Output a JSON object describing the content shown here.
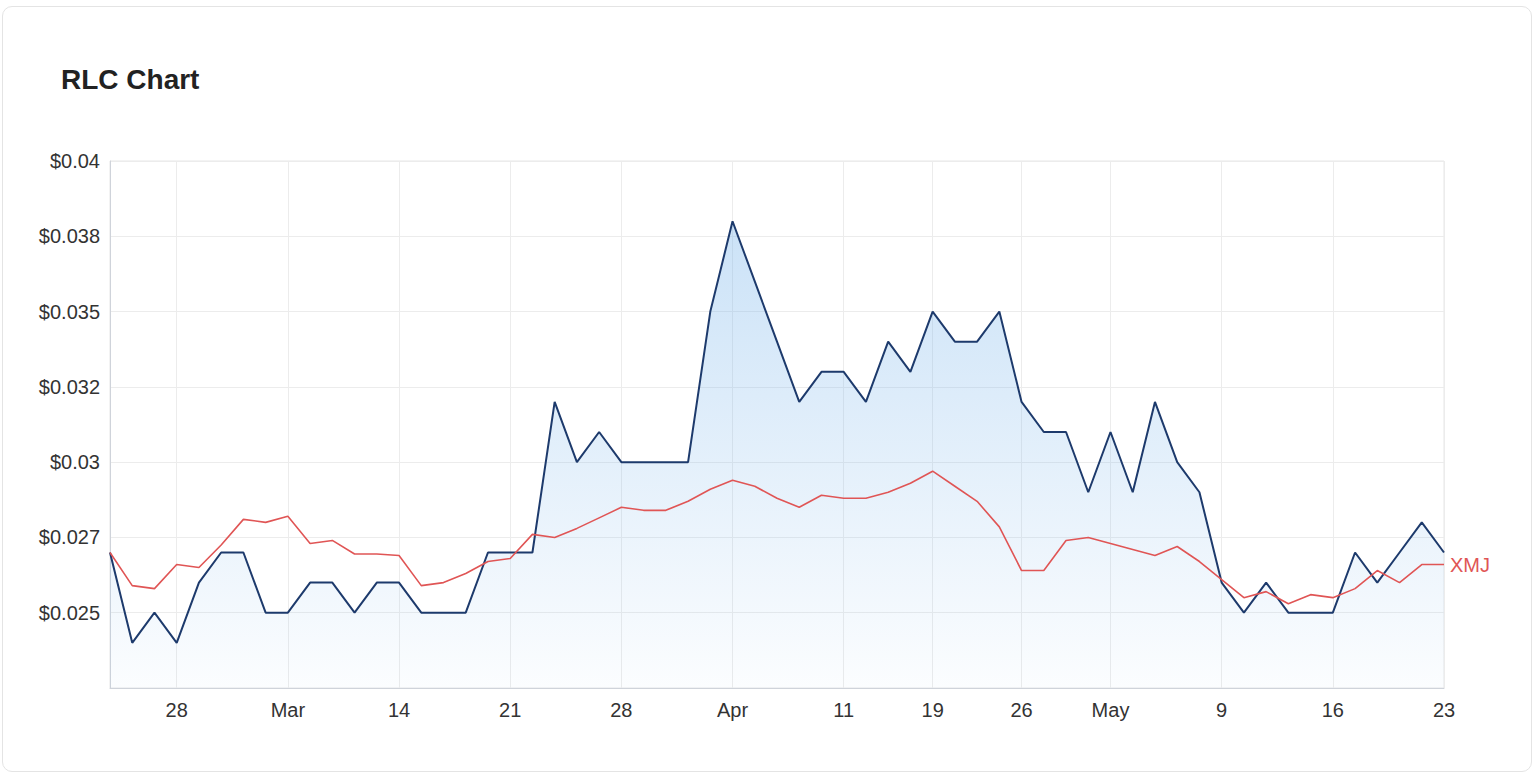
{
  "chart_data": {
    "type": "line",
    "title": "RLC Chart",
    "categories": [
      null,
      null,
      null,
      "28",
      null,
      null,
      null,
      null,
      "Mar",
      null,
      null,
      null,
      null,
      "14",
      null,
      null,
      null,
      null,
      "21",
      null,
      null,
      null,
      null,
      "28",
      null,
      null,
      null,
      null,
      "Apr",
      null,
      null,
      null,
      null,
      "11",
      null,
      null,
      null,
      "19",
      null,
      null,
      null,
      "26",
      null,
      null,
      null,
      "May",
      null,
      null,
      null,
      null,
      "9",
      null,
      null,
      null,
      null,
      "16",
      null,
      null,
      null,
      null,
      "23"
    ],
    "series": [
      {
        "type": "area",
        "color": "#1d3a6c",
        "values": [
          0.027,
          0.024,
          0.025,
          0.024,
          0.026,
          0.027,
          0.027,
          0.025,
          0.025,
          0.026,
          0.026,
          0.025,
          0.026,
          0.026,
          0.025,
          0.025,
          0.025,
          0.027,
          0.027,
          0.027,
          0.032,
          0.03,
          0.031,
          0.03,
          0.03,
          0.03,
          0.03,
          0.035,
          0.038,
          0.036,
          0.034,
          0.032,
          0.033,
          0.033,
          0.032,
          0.034,
          0.033,
          0.035,
          0.034,
          0.034,
          0.035,
          0.032,
          0.031,
          0.031,
          0.029,
          0.031,
          0.029,
          0.032,
          0.03,
          0.029,
          0.026,
          0.025,
          0.026,
          0.025,
          0.025,
          0.025,
          0.027,
          0.026,
          0.027,
          0.028,
          0.027
        ]
      },
      {
        "name": "XMJ",
        "type": "line",
        "color": "#e05555",
        "values": [
          0.027,
          0.0259,
          0.0258,
          0.0266,
          0.0265,
          0.02725,
          0.0281,
          0.028,
          0.0282,
          0.0273,
          0.0274,
          0.02695,
          0.02695,
          0.0269,
          0.0259,
          0.026,
          0.0263,
          0.0267,
          0.0268,
          0.0276,
          0.0275,
          0.0278,
          0.02815,
          0.0285,
          0.0284,
          0.0284,
          0.0287,
          0.0291,
          0.0294,
          0.0292,
          0.0288,
          0.0285,
          0.0289,
          0.0288,
          0.0288,
          0.029,
          0.0293,
          0.0297,
          0.0292,
          0.0287,
          0.02785,
          0.0264,
          0.0264,
          0.0274,
          0.0275,
          0.0273,
          0.0271,
          0.0269,
          0.0272,
          0.0267,
          0.0261,
          0.0255,
          0.0257,
          0.0253,
          0.0256,
          0.0255,
          0.0258,
          0.0264,
          0.026,
          0.0266,
          0.0266
        ]
      }
    ],
    "ylim": [
      0.0225,
      0.04
    ],
    "yticks": [
      {
        "value": 0.025,
        "label": "$0.025"
      },
      {
        "value": 0.0275,
        "label": "$0.027"
      },
      {
        "value": 0.03,
        "label": "$0.03"
      },
      {
        "value": 0.0325,
        "label": "$0.032"
      },
      {
        "value": 0.035,
        "label": "$0.035"
      },
      {
        "value": 0.0375,
        "label": "$0.038"
      },
      {
        "value": 0.04,
        "label": "$0.04"
      }
    ],
    "grid": true
  }
}
